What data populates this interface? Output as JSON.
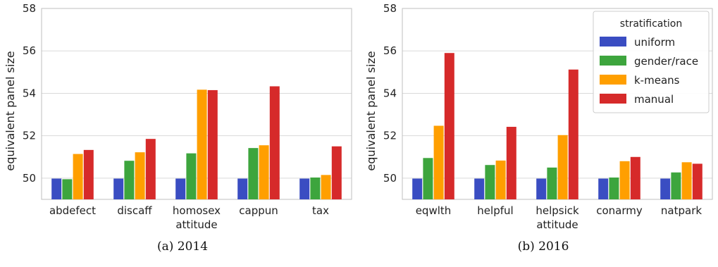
{
  "colors": {
    "uniform": "#3a4dc2",
    "gender/race": "#3da53d",
    "k-means": "#ff9f00",
    "manual": "#d62a2a",
    "grid": "#d9d9d9",
    "frame": "#bfbfbf"
  },
  "legend": {
    "title": "stratification",
    "placement": "top-right of panel (b)"
  },
  "chart_data": [
    {
      "type": "bar",
      "caption": "(a) 2014",
      "ylabel": "equivalent panel size",
      "ylim": [
        49,
        58
      ],
      "yticks": [
        50,
        52,
        54,
        56,
        58
      ],
      "grid": true,
      "categories": [
        [
          "abdefect"
        ],
        [
          "discaff"
        ],
        [
          "homosex",
          "attitude"
        ],
        [
          "cappun"
        ],
        [
          "tax"
        ]
      ],
      "series": [
        {
          "name": "uniform",
          "values": [
            49.98,
            49.98,
            49.98,
            49.98,
            49.98
          ]
        },
        {
          "name": "gender/race",
          "values": [
            49.95,
            50.82,
            51.17,
            51.42,
            50.03
          ]
        },
        {
          "name": "k-means",
          "values": [
            51.14,
            51.22,
            54.17,
            51.55,
            50.15
          ]
        },
        {
          "name": "manual",
          "values": [
            51.33,
            51.85,
            54.15,
            54.33,
            51.5
          ]
        }
      ]
    },
    {
      "type": "bar",
      "caption": "(b) 2016",
      "ylabel": "equivalent panel size",
      "ylim": [
        49,
        58
      ],
      "yticks": [
        50,
        52,
        54,
        56,
        58
      ],
      "grid": true,
      "categories": [
        [
          "eqwlth"
        ],
        [
          "helpful"
        ],
        [
          "helpsick",
          "attitude"
        ],
        [
          "conarmy"
        ],
        [
          "natpark"
        ]
      ],
      "series": [
        {
          "name": "uniform",
          "values": [
            49.98,
            49.98,
            49.98,
            49.98,
            49.98
          ]
        },
        {
          "name": "gender/race",
          "values": [
            50.95,
            50.62,
            50.5,
            50.03,
            50.27
          ]
        },
        {
          "name": "k-means",
          "values": [
            52.47,
            50.83,
            52.03,
            50.8,
            50.75
          ]
        },
        {
          "name": "manual",
          "values": [
            55.9,
            52.42,
            55.12,
            51.0,
            50.68
          ]
        }
      ]
    }
  ]
}
